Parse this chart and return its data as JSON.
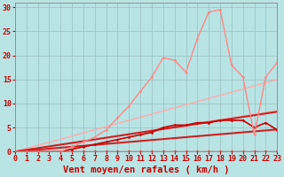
{
  "background_color": "#b8e4e4",
  "grid_color": "#9bbfbf",
  "xlabel": "Vent moyen/en rafales ( km/h )",
  "xlabel_color": "#cc0000",
  "xlabel_fontsize": 7.5,
  "tick_color": "#cc0000",
  "tick_fontsize": 6,
  "ylim": [
    0,
    31
  ],
  "xlim": [
    0,
    23
  ],
  "yticks": [
    0,
    5,
    10,
    15,
    20,
    25,
    30
  ],
  "xticks": [
    0,
    1,
    2,
    3,
    4,
    5,
    6,
    7,
    8,
    9,
    10,
    11,
    12,
    13,
    14,
    15,
    16,
    17,
    18,
    19,
    20,
    21,
    22,
    23
  ],
  "straight_lines": [
    {
      "slope": 0.37,
      "color": "#ffaaaa",
      "lw": 1.0
    },
    {
      "slope": 0.65,
      "color": "#ffaaaa",
      "lw": 1.0
    },
    {
      "slope": 0.2,
      "color": "#cc2222",
      "lw": 1.5
    },
    {
      "slope": 0.36,
      "color": "#cc2222",
      "lw": 1.5
    }
  ],
  "min_line": {
    "x": [
      0,
      1,
      2,
      3,
      4,
      5,
      6,
      7,
      8,
      9,
      10,
      11,
      12,
      13,
      14,
      15,
      16,
      17,
      18,
      19,
      20,
      21,
      22,
      23
    ],
    "y": [
      0,
      0,
      0,
      0,
      0,
      0,
      0,
      0,
      0,
      0,
      0,
      0,
      0,
      0,
      0,
      0,
      0,
      0,
      0,
      0,
      0,
      0,
      0,
      0
    ],
    "color": "#cc2222",
    "lw": 1.0,
    "marker": "D",
    "ms": 1.5
  },
  "wind_line": {
    "x": [
      0,
      1,
      2,
      3,
      4,
      5,
      6,
      7,
      8,
      9,
      10,
      11,
      12,
      13,
      14,
      15,
      16,
      17,
      18,
      19,
      20,
      21,
      22,
      23
    ],
    "y": [
      0,
      0,
      0,
      0,
      0,
      0.5,
      1.0,
      1.5,
      2.0,
      2.5,
      3.0,
      3.5,
      4.0,
      5.0,
      5.5,
      5.5,
      6.0,
      6.0,
      6.5,
      6.5,
      6.5,
      5.0,
      6.0,
      4.5
    ],
    "color": "#cc0000",
    "lw": 1.2,
    "marker": "D",
    "ms": 1.5
  },
  "gust_line": {
    "x": [
      0,
      1,
      2,
      3,
      4,
      5,
      6,
      7,
      8,
      9,
      10,
      11,
      12,
      13,
      14,
      15,
      16,
      17,
      18,
      19,
      20,
      21,
      22,
      23
    ],
    "y": [
      0,
      0,
      0,
      0,
      0,
      1.0,
      2.0,
      3.0,
      4.5,
      7.0,
      9.5,
      12.5,
      15.5,
      19.5,
      19.0,
      16.5,
      23.5,
      29.0,
      29.5,
      18.0,
      15.5,
      3.5,
      15.5,
      18.5
    ],
    "color": "#ff8888",
    "lw": 1.0,
    "marker": "D",
    "ms": 1.5
  }
}
